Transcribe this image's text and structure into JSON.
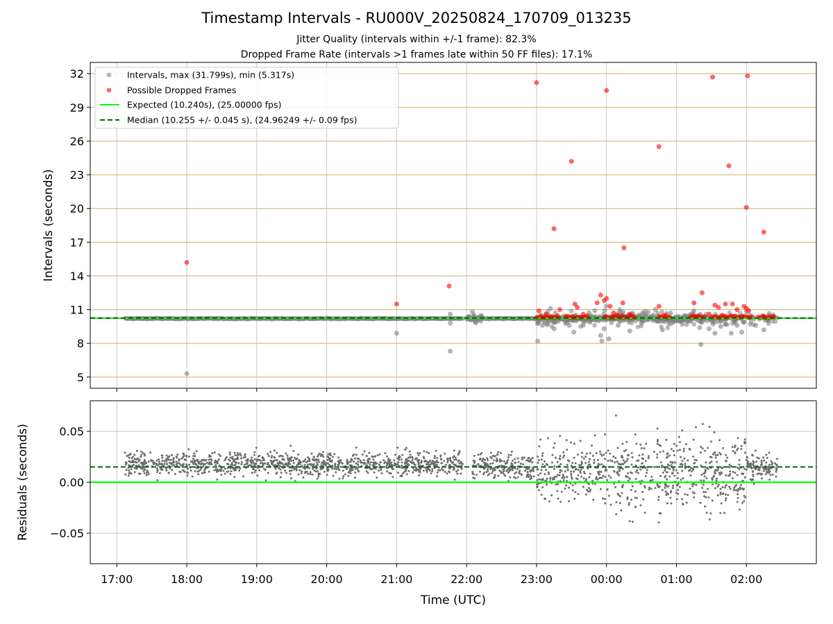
{
  "figure": {
    "title": "Timestamp Intervals - RU000V_20250824_170709_013235",
    "subtitle_1": "Jitter Quality (intervals within +/-1 frame): 82.3%",
    "subtitle_2": "Dropped Frame Rate (intervals >1 frames late within 50 FF files): 17.1%"
  },
  "colors": {
    "interval_points": "#808080",
    "dropped_points": "#ff0000",
    "expected_line": "#00ff00",
    "median_line": "#006400",
    "hgrid_top": "#d4b870",
    "grid": "#c8c8c8",
    "residual_points": "#6e6e6e"
  },
  "chart_data": [
    {
      "type": "scatter",
      "name": "intervals",
      "ylabel": "Intervals (seconds)",
      "ylim": [
        4,
        33
      ],
      "yticks": [
        "5",
        "8",
        "11",
        "14",
        "17",
        "20",
        "23",
        "26",
        "29",
        "32"
      ],
      "ytick_values": [
        5,
        8,
        11,
        14,
        17,
        20,
        23,
        26,
        29,
        32
      ],
      "grid": true,
      "legend_placement": "top-left",
      "legend": [
        "Intervals, max (31.799s), min (5.317s)",
        "Possible Dropped Frames",
        "Expected (10.240s), (25.00000 fps)",
        "Median (10.255 +/- 0.045 s), (24.96249 +/- 0.09 fps)"
      ],
      "expected_value": 10.24,
      "median_value": 10.255,
      "x_range_hours": [
        16.62,
        27.0
      ],
      "baseline_segments_hours": [
        [
          17.12,
          21.95
        ],
        [
          22.17,
          23.0
        ],
        [
          23.0,
          25.5
        ]
      ],
      "interval_points": [
        {
          "t": "18:00",
          "y": 5.3
        },
        {
          "t": "21:00",
          "y": 8.9
        },
        {
          "t": "21:46",
          "y": 7.3
        },
        {
          "t": "21:46",
          "y": 9.8
        },
        {
          "t": "21:46",
          "y": 10.6
        },
        {
          "t": "22:02",
          "y": 10.4
        },
        {
          "t": "22:05",
          "y": 10.8
        },
        {
          "t": "22:08",
          "y": 9.9
        },
        {
          "t": "22:10",
          "y": 10.2
        },
        {
          "t": "23:01",
          "y": 8.2
        },
        {
          "t": "23:05",
          "y": 9.6
        },
        {
          "t": "23:12",
          "y": 11.1
        },
        {
          "t": "23:15",
          "y": 9.3
        },
        {
          "t": "23:28",
          "y": 9.6
        },
        {
          "t": "23:32",
          "y": 9.0
        },
        {
          "t": "23:40",
          "y": 9.6
        },
        {
          "t": "23:45",
          "y": 10.7
        },
        {
          "t": "23:50",
          "y": 10.9
        },
        {
          "t": "23:55",
          "y": 8.7
        },
        {
          "t": "23:56",
          "y": 8.2
        },
        {
          "t": "23:58",
          "y": 9.3
        },
        {
          "t": "00:02",
          "y": 8.4
        },
        {
          "t": "00:10",
          "y": 9.6
        },
        {
          "t": "00:14",
          "y": 10.8
        },
        {
          "t": "00:20",
          "y": 9.1
        },
        {
          "t": "00:30",
          "y": 9.8
        },
        {
          "t": "00:42",
          "y": 11.0
        },
        {
          "t": "00:48",
          "y": 9.2
        },
        {
          "t": "00:55",
          "y": 10.7
        },
        {
          "t": "01:05",
          "y": 9.7
        },
        {
          "t": "01:15",
          "y": 10.9
        },
        {
          "t": "01:20",
          "y": 9.4
        },
        {
          "t": "01:21",
          "y": 7.9
        },
        {
          "t": "01:28",
          "y": 9.3
        },
        {
          "t": "01:33",
          "y": 8.9
        },
        {
          "t": "01:38",
          "y": 9.5
        },
        {
          "t": "01:42",
          "y": 9.7
        },
        {
          "t": "01:47",
          "y": 8.9
        },
        {
          "t": "01:52",
          "y": 9.6
        },
        {
          "t": "01:56",
          "y": 9.0
        },
        {
          "t": "02:00",
          "y": 10.8
        },
        {
          "t": "02:08",
          "y": 9.6
        },
        {
          "t": "02:15",
          "y": 9.2
        }
      ],
      "dropped_points": [
        {
          "t": "18:00",
          "y": 15.2
        },
        {
          "t": "21:00",
          "y": 11.5
        },
        {
          "t": "21:45",
          "y": 13.1
        },
        {
          "t": "23:00",
          "y": 31.2
        },
        {
          "t": "23:15",
          "y": 18.2
        },
        {
          "t": "23:30",
          "y": 24.2
        },
        {
          "t": "00:00",
          "y": 30.5
        },
        {
          "t": "00:15",
          "y": 16.5
        },
        {
          "t": "00:45",
          "y": 25.5
        },
        {
          "t": "01:31",
          "y": 31.7
        },
        {
          "t": "01:45",
          "y": 23.8
        },
        {
          "t": "02:01",
          "y": 31.8
        },
        {
          "t": "02:00",
          "y": 20.1
        },
        {
          "t": "02:15",
          "y": 17.9
        },
        {
          "t": "23:02",
          "y": 10.9
        },
        {
          "t": "23:08",
          "y": 10.6
        },
        {
          "t": "23:20",
          "y": 11.0
        },
        {
          "t": "23:33",
          "y": 11.5
        },
        {
          "t": "23:35",
          "y": 11.2
        },
        {
          "t": "23:40",
          "y": 10.6
        },
        {
          "t": "23:52",
          "y": 11.6
        },
        {
          "t": "23:55",
          "y": 12.3
        },
        {
          "t": "23:58",
          "y": 11.8
        },
        {
          "t": "00:00",
          "y": 12.0
        },
        {
          "t": "00:03",
          "y": 11.3
        },
        {
          "t": "00:06",
          "y": 10.7
        },
        {
          "t": "00:14",
          "y": 11.6
        },
        {
          "t": "00:20",
          "y": 10.6
        },
        {
          "t": "00:45",
          "y": 11.3
        },
        {
          "t": "01:15",
          "y": 11.6
        },
        {
          "t": "01:22",
          "y": 12.5
        },
        {
          "t": "01:28",
          "y": 10.6
        },
        {
          "t": "01:33",
          "y": 11.4
        },
        {
          "t": "01:36",
          "y": 11.2
        },
        {
          "t": "01:39",
          "y": 10.5
        },
        {
          "t": "01:42",
          "y": 11.5
        },
        {
          "t": "01:48",
          "y": 11.5
        },
        {
          "t": "01:52",
          "y": 11.0
        },
        {
          "t": "01:58",
          "y": 11.3
        },
        {
          "t": "02:00",
          "y": 11.1
        },
        {
          "t": "02:02",
          "y": 10.9
        }
      ],
      "dropped_clusters": [
        {
          "from": "23:00",
          "to": "23:20"
        },
        {
          "from": "23:25",
          "to": "23:45"
        },
        {
          "from": "23:58",
          "to": "00:25"
        },
        {
          "from": "00:45",
          "to": "00:55"
        },
        {
          "from": "01:12",
          "to": "01:25"
        },
        {
          "from": "01:30",
          "to": "02:05"
        },
        {
          "from": "02:10",
          "to": "02:25"
        }
      ]
    },
    {
      "type": "scatter",
      "name": "residuals",
      "xlabel": "Time (UTC)",
      "ylabel": "Residuals (seconds)",
      "ylim": [
        -0.08,
        0.08
      ],
      "yticks": [
        "−0.05",
        "0.00",
        "0.05"
      ],
      "ytick_values": [
        -0.05,
        0.0,
        0.05
      ],
      "xticks": [
        "17:00",
        "18:00",
        "19:00",
        "20:00",
        "21:00",
        "22:00",
        "23:00",
        "00:00",
        "01:00",
        "02:00"
      ],
      "xtick_hours": [
        17,
        18,
        19,
        20,
        21,
        22,
        23,
        24,
        25,
        26
      ],
      "grid": true,
      "median_offset": 0.015,
      "zero_line": 0.0,
      "segments": [
        {
          "from": "17:07",
          "to": "21:57",
          "mean": 0.018,
          "spread": 0.011
        },
        {
          "from": "22:05",
          "to": "22:58",
          "mean": 0.016,
          "spread": 0.012
        },
        {
          "from": "23:00",
          "to": "23:58",
          "mean": 0.012,
          "spread": 0.025
        },
        {
          "from": "23:58",
          "to": "01:05",
          "mean": 0.008,
          "spread": 0.04
        },
        {
          "from": "01:05",
          "to": "02:00",
          "mean": 0.01,
          "spread": 0.035
        },
        {
          "from": "02:00",
          "to": "02:27",
          "mean": 0.015,
          "spread": 0.012
        }
      ]
    }
  ]
}
